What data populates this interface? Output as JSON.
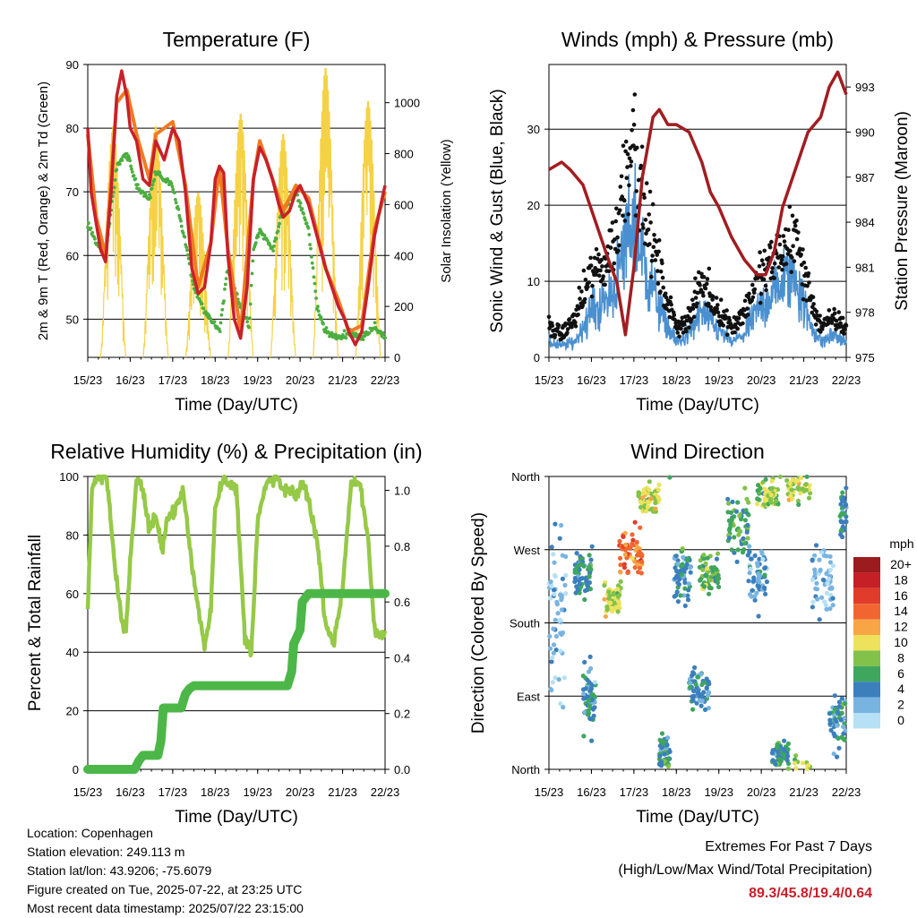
{
  "chart_data": [
    {
      "type": "line",
      "title": "Temperature (F)",
      "xlabel": "Time (Day/UTC)",
      "ylabel": "2m & 9m T (Red, Orange) & 2m Td (Green)",
      "y2label": "Solar Insolation (Yellow)",
      "ylim": [
        44,
        90
      ],
      "y2lim": [
        0,
        1150
      ],
      "yticks": [
        50,
        60,
        70,
        80,
        90
      ],
      "y2ticks": [
        0,
        200,
        400,
        600,
        800,
        1000
      ],
      "xticks": [
        "15/23",
        "16/23",
        "17/23",
        "18/23",
        "19/23",
        "20/23",
        "21/23",
        "22/23"
      ],
      "series": [
        {
          "name": "2m T",
          "color": "#c8202a",
          "x": [
            0,
            0.08,
            0.2,
            0.3,
            0.42,
            0.55,
            0.68,
            0.8,
            0.92,
            1.0,
            1.15,
            1.3,
            1.45,
            1.6,
            1.8,
            2.0,
            2.15,
            2.3,
            2.45,
            2.6,
            2.75,
            2.9,
            3.0,
            3.1,
            3.2,
            3.3,
            3.45,
            3.6,
            3.75,
            3.9,
            4.05,
            4.2,
            4.35,
            4.5,
            4.6,
            4.75,
            4.9,
            5.0,
            5.2,
            5.4,
            5.6,
            5.75,
            5.9,
            6.05,
            6.15,
            6.3,
            6.45,
            6.6,
            6.75,
            6.9,
            7.0
          ],
          "y": [
            80,
            70,
            65,
            61,
            59,
            70,
            85,
            89,
            85,
            80,
            78,
            72,
            71,
            78,
            75,
            80,
            78,
            70,
            58,
            54,
            55,
            62,
            72,
            74,
            73,
            60,
            50,
            47,
            55,
            72,
            77,
            75,
            72,
            68,
            66,
            67,
            70,
            71,
            68,
            63,
            58,
            55,
            52,
            50,
            48,
            46,
            48,
            55,
            63,
            68,
            71
          ]
        },
        {
          "name": "9m T",
          "color": "#f07a22",
          "x": [
            0,
            0.2,
            0.42,
            0.68,
            0.92,
            1.15,
            1.45,
            1.6,
            2.0,
            2.3,
            2.6,
            2.9,
            3.1,
            3.3,
            3.6,
            3.9,
            4.05,
            4.35,
            4.6,
            4.9,
            5.2,
            5.6,
            5.9,
            6.15,
            6.45,
            6.75,
            7.0
          ],
          "y": [
            79,
            66,
            60,
            84,
            86,
            79,
            72,
            79,
            81,
            71,
            55,
            62,
            74,
            61,
            48,
            72,
            78,
            72,
            67,
            71,
            69,
            58,
            53,
            48,
            49,
            64,
            70
          ]
        },
        {
          "name": "2m Td",
          "color": "#4cae3f",
          "x": [
            0,
            0.2,
            0.42,
            0.68,
            0.92,
            1.15,
            1.45,
            1.6,
            2.0,
            2.3,
            2.5,
            2.75,
            2.9,
            3.1,
            3.3,
            3.6,
            3.8,
            3.9,
            4.05,
            4.35,
            4.6,
            4.9,
            5.2,
            5.4,
            5.6,
            5.9,
            6.15,
            6.45,
            6.75,
            7.0
          ],
          "y": [
            65,
            62,
            60,
            74,
            76,
            71,
            69,
            73,
            71,
            62,
            55,
            51,
            50,
            48,
            58,
            52,
            49,
            61,
            64,
            61,
            67,
            70,
            64,
            52,
            48,
            47,
            48,
            47,
            49,
            47
          ]
        },
        {
          "name": "Solar Insolation",
          "color": "#f5d245",
          "daily_peaks": [
            {
              "day": 0.6,
              "value": 910
            },
            {
              "day": 1.6,
              "value": 910
            },
            {
              "day": 2.6,
              "value": 650
            },
            {
              "day": 3.6,
              "value": 960
            },
            {
              "day": 4.6,
              "value": 880
            },
            {
              "day": 5.6,
              "value": 1140
            },
            {
              "day": 6.6,
              "value": 1010
            }
          ]
        }
      ]
    },
    {
      "type": "scatter",
      "title": "Winds (mph) & Pressure (mb)",
      "xlabel": "Time (Day/UTC)",
      "ylabel": "Sonic Wind & Gust (Blue, Black)",
      "y2label": "Station Pressure (Maroon)",
      "ylim": [
        0,
        38.5
      ],
      "y2lim": [
        975,
        994.5
      ],
      "yticks": [
        0,
        10,
        20,
        30
      ],
      "y2ticks": [
        975,
        978,
        981,
        984,
        987,
        990,
        993
      ],
      "xticks": [
        "15/23",
        "16/23",
        "17/23",
        "18/23",
        "19/23",
        "20/23",
        "21/23",
        "22/23"
      ],
      "series": [
        {
          "name": "Sonic Wind",
          "color": "#4a90d0",
          "x": [
            0,
            0.3,
            0.6,
            0.8,
            1.0,
            1.3,
            1.6,
            1.85,
            2.0,
            2.2,
            2.45,
            2.7,
            3.0,
            3.3,
            3.6,
            3.9,
            4.3,
            4.6,
            4.9,
            5.2,
            5.5,
            5.8,
            6.1,
            6.4,
            6.7,
            7.0
          ],
          "y": [
            2,
            1.5,
            2,
            4,
            6,
            7,
            10,
            16,
            18,
            13,
            9,
            5,
            2,
            3,
            6,
            4,
            2,
            3,
            6,
            8,
            10,
            11,
            5,
            2,
            3,
            2
          ]
        },
        {
          "name": "Gust",
          "color": "#111111",
          "x": [
            0,
            0.3,
            0.6,
            0.8,
            1.0,
            1.3,
            1.6,
            1.85,
            2.0,
            2.2,
            2.45,
            2.7,
            3.0,
            3.3,
            3.6,
            3.9,
            4.3,
            4.6,
            4.9,
            5.2,
            5.5,
            5.8,
            6.1,
            6.4,
            6.7,
            7.0
          ],
          "y": [
            4,
            3,
            5,
            8,
            11,
            12,
            16,
            27,
            30,
            20,
            15,
            9,
            4,
            5,
            10,
            7,
            4,
            6,
            10,
            12,
            14,
            16,
            9,
            4,
            5,
            4
          ]
        },
        {
          "name": "Station Pressure",
          "color": "#a11d21",
          "x": [
            0,
            0.3,
            0.5,
            0.8,
            1.1,
            1.4,
            1.6,
            1.8,
            2.0,
            2.2,
            2.45,
            2.6,
            2.8,
            3.0,
            3.3,
            3.6,
            3.8,
            4.0,
            4.3,
            4.6,
            4.9,
            5.1,
            5.3,
            5.5,
            5.8,
            6.1,
            6.4,
            6.6,
            6.8,
            7.0
          ],
          "y": [
            987.5,
            988,
            987.5,
            986.5,
            984,
            981.5,
            980,
            976.5,
            981,
            987,
            991,
            991.5,
            990.5,
            990.5,
            990,
            988,
            986,
            985,
            983,
            981.5,
            980.5,
            980.5,
            982,
            985,
            987.5,
            990,
            991,
            993,
            994,
            992.5
          ]
        }
      ]
    },
    {
      "type": "line",
      "title": "Relative Humidity (%) & Precipitation (in)",
      "xlabel": "Time (Day/UTC)",
      "ylabel": "Percent & Total Rainfall",
      "ylim": [
        0,
        100
      ],
      "y2lim": [
        0,
        1.05
      ],
      "yticks": [
        0,
        20,
        40,
        60,
        80,
        100
      ],
      "y2ticks": [
        0.0,
        0.2,
        0.4,
        0.6,
        0.8,
        1.0
      ],
      "xticks": [
        "15/23",
        "16/23",
        "17/23",
        "18/23",
        "19/23",
        "20/23",
        "21/23",
        "22/23"
      ],
      "series": [
        {
          "name": "Relative Humidity",
          "color": "#95c947",
          "x": [
            0,
            0.1,
            0.25,
            0.45,
            0.6,
            0.8,
            0.9,
            1.0,
            1.15,
            1.3,
            1.45,
            1.6,
            1.75,
            1.85,
            2.0,
            2.1,
            2.25,
            2.45,
            2.6,
            2.75,
            2.9,
            3.0,
            3.2,
            3.5,
            3.7,
            3.85,
            4.0,
            4.2,
            4.45,
            4.6,
            4.75,
            4.9,
            5.05,
            5.2,
            5.4,
            5.6,
            5.8,
            6.0,
            6.2,
            6.4,
            6.6,
            6.75,
            6.9,
            7.0
          ],
          "y": [
            55,
            96,
            100,
            100,
            75,
            50,
            48,
            70,
            100,
            95,
            82,
            86,
            75,
            85,
            88,
            90,
            95,
            70,
            55,
            42,
            55,
            90,
            100,
            95,
            45,
            40,
            85,
            97,
            100,
            95,
            95,
            93,
            98,
            92,
            78,
            50,
            43,
            62,
            98,
            98,
            78,
            48,
            45,
            47
          ]
        },
        {
          "name": "Total Rainfall",
          "color": "#4cb748",
          "x": [
            0,
            1.1,
            1.2,
            1.3,
            1.65,
            1.72,
            1.78,
            2.2,
            2.3,
            2.4,
            2.5,
            4.7,
            4.8,
            4.85,
            5.0,
            5.05,
            5.2,
            7.0
          ],
          "y": [
            0,
            0,
            0.03,
            0.05,
            0.05,
            0.1,
            0.22,
            0.22,
            0.27,
            0.29,
            0.3,
            0.3,
            0.35,
            0.45,
            0.5,
            0.6,
            0.63,
            0.63
          ]
        }
      ]
    },
    {
      "type": "scatter",
      "title": "Wind Direction",
      "xlabel": "Time (Day/UTC)",
      "ylabel": "Direction (Colored By Speed)",
      "ylim": [
        0,
        360
      ],
      "yticks": [
        "North",
        "East",
        "South",
        "West",
        "North"
      ],
      "xticks": [
        "15/23",
        "16/23",
        "17/23",
        "18/23",
        "19/23",
        "20/23",
        "21/23",
        "22/23"
      ],
      "colorbar": {
        "title": "mph",
        "labels": [
          "20+",
          "18",
          "16",
          "14",
          "12",
          "10",
          "8",
          "6",
          "4",
          "2",
          "0"
        ],
        "colors": [
          "#9b1b1f",
          "#c52026",
          "#e03c2c",
          "#f16630",
          "#f7a545",
          "#ede25c",
          "#82c24a",
          "#3fa65e",
          "#3b7fbd",
          "#79b4e1",
          "#b6e0f5"
        ]
      },
      "clusters": [
        {
          "x": 0.0,
          "xw": 0.4,
          "dir": 200,
          "dw": 160,
          "speed": 2
        },
        {
          "x": 0.6,
          "xw": 0.45,
          "dir": 240,
          "dw": 40,
          "speed": 5
        },
        {
          "x": 0.8,
          "xw": 0.3,
          "dir": 90,
          "dw": 60,
          "speed": 4
        },
        {
          "x": 1.3,
          "xw": 0.4,
          "dir": 210,
          "dw": 30,
          "speed": 9
        },
        {
          "x": 1.65,
          "xw": 0.55,
          "dir": 265,
          "dw": 50,
          "speed": 14
        },
        {
          "x": 2.1,
          "xw": 0.5,
          "dir": 335,
          "dw": 30,
          "speed": 9
        },
        {
          "x": 2.6,
          "xw": 0.25,
          "dir": 20,
          "dw": 30,
          "speed": 5
        },
        {
          "x": 2.95,
          "xw": 0.4,
          "dir": 240,
          "dw": 50,
          "speed": 4
        },
        {
          "x": 3.3,
          "xw": 0.5,
          "dir": 100,
          "dw": 40,
          "speed": 4
        },
        {
          "x": 3.55,
          "xw": 0.45,
          "dir": 240,
          "dw": 40,
          "speed": 7
        },
        {
          "x": 4.2,
          "xw": 0.5,
          "dir": 300,
          "dw": 60,
          "speed": 6
        },
        {
          "x": 4.7,
          "xw": 0.45,
          "dir": 240,
          "dw": 60,
          "speed": 3
        },
        {
          "x": 4.9,
          "xw": 0.5,
          "dir": 340,
          "dw": 30,
          "speed": 8
        },
        {
          "x": 5.25,
          "xw": 0.4,
          "dir": 20,
          "dw": 25,
          "speed": 5
        },
        {
          "x": 5.6,
          "xw": 0.55,
          "dir": 350,
          "dw": 30,
          "speed": 9
        },
        {
          "x": 6.2,
          "xw": 0.5,
          "dir": 230,
          "dw": 60,
          "speed": 2
        },
        {
          "x": 6.6,
          "xw": 0.4,
          "dir": 60,
          "dw": 50,
          "speed": 4
        },
        {
          "x": 6.85,
          "xw": 0.25,
          "dir": 320,
          "dw": 50,
          "speed": 4
        }
      ]
    }
  ],
  "station_info": {
    "location": "Location: Copenhagen",
    "elevation": "Station elevation: 249.113 m",
    "latlon": "Station lat/lon: 43.9206; -75.6079",
    "created": "Figure created on Tue, 2025-07-22, at 23:25 UTC",
    "timestamp": "Most recent data timestamp: 2025/07/22 23:15:00"
  },
  "extremes": {
    "line1": "Extremes For Past 7 Days",
    "line2": "(High/Low/Max Wind/Total Precipitation)",
    "values": "89.3/45.8/19.4/0.64"
  }
}
